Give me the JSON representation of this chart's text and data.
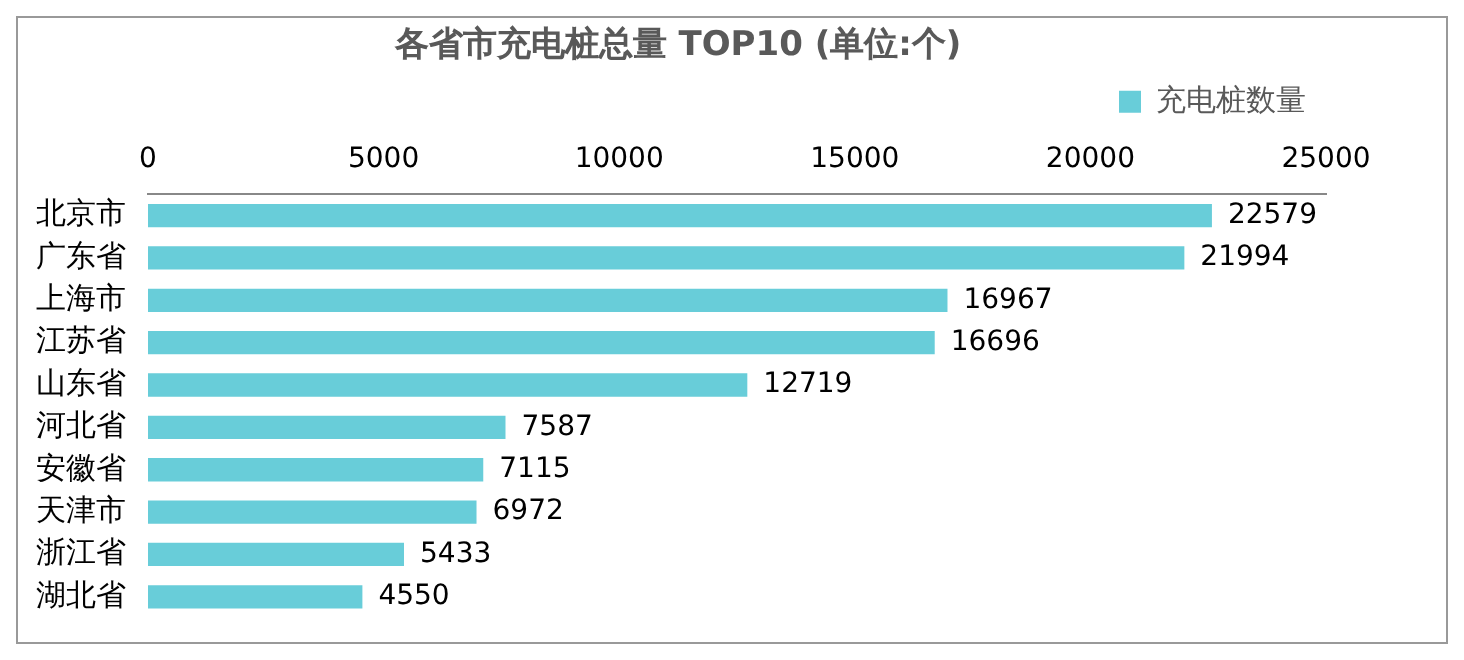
{
  "chart_data": {
    "type": "bar",
    "orientation": "horizontal",
    "title": "各省市充电桩总量 TOP10 (单位:个)",
    "categories": [
      "北京市",
      "广东省",
      "上海市",
      "江苏省",
      "山东省",
      "河北省",
      "安徽省",
      "天津市",
      "浙江省",
      "湖北省"
    ],
    "series": [
      {
        "name": "充电桩数量",
        "color": "#68cdd9",
        "values": [
          22579,
          21994,
          16967,
          16696,
          12719,
          7587,
          7115,
          6972,
          5433,
          4550
        ]
      }
    ],
    "xlim": [
      0,
      25000
    ],
    "xticks": [
      0,
      5000,
      10000,
      15000,
      20000,
      25000
    ],
    "grid": false,
    "legend": "top right",
    "data_labels": true
  }
}
